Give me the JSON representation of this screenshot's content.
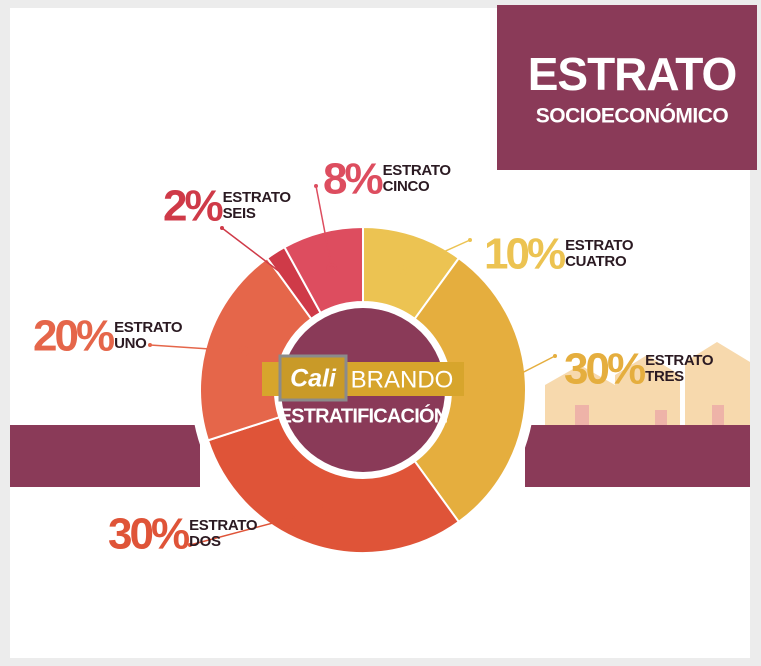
{
  "chart_data": {
    "type": "donut",
    "title": "ESTRATO",
    "subtitle": "SOCIOECONÓMICO",
    "categories": [
      "ESTRATO CUATRO",
      "ESTRATO TRES",
      "ESTRATO DOS",
      "ESTRATO UNO",
      "ESTRATO SEIS",
      "ESTRATO CINCO"
    ],
    "values": [
      10,
      30,
      30,
      20,
      2,
      8
    ],
    "value_labels": [
      "10%",
      "30%",
      "30%",
      "20%",
      "2%",
      "8%"
    ],
    "colors": [
      "#ecc352",
      "#e5ae3e",
      "#df5438",
      "#e5664a",
      "#cf3a48",
      "#dd4d5f"
    ]
  },
  "logo": {
    "script": "Cali",
    "word": "BRANDO"
  },
  "center_text": "ESTRATIFICACIÓN"
}
